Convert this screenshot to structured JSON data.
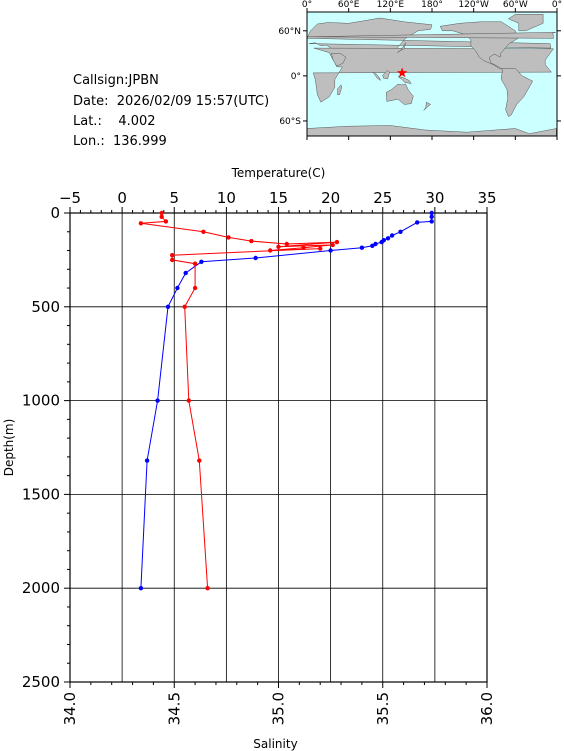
{
  "info": {
    "callsign": "Callsign:JPBN",
    "date": "Date:  2026/02/09 15:57(UTC)",
    "lat": "Lat.:    4.002",
    "lon": "Lon.:  136.999"
  },
  "map": {
    "lon_labels": [
      "0°",
      "60°E",
      "120°E",
      "180°",
      "120°W",
      "60°W",
      "0°"
    ],
    "lat_labels": [
      "60°N",
      "0°",
      "60°S"
    ],
    "station": {
      "lon": 136.999,
      "lat": 4.002
    },
    "colors": {
      "ocean": "#ccffff",
      "land": "#bebebe",
      "marker": "#ff0000"
    }
  },
  "chart_data": {
    "type": "line",
    "top_axis": {
      "label": "Temperature(C)",
      "range": [
        -5,
        35
      ],
      "ticks": [
        "-5",
        "0",
        "5",
        "10",
        "15",
        "20",
        "25",
        "30",
        "35"
      ]
    },
    "bottom_axis": {
      "label": "Salinity",
      "range": [
        34.0,
        36.0
      ],
      "ticks": [
        "34.0",
        "34.5",
        "35.0",
        "35.5",
        "36.0"
      ]
    },
    "left_axis": {
      "label": "Depth(m)",
      "range": [
        0,
        2500
      ],
      "reversed": true,
      "ticks": [
        "0",
        "500",
        "1000",
        "1500",
        "2000",
        "2500"
      ]
    },
    "grid": true,
    "series": [
      {
        "axis": "temperature",
        "color": "#0000ff",
        "points": [
          [
            29.7,
            0
          ],
          [
            29.7,
            20
          ],
          [
            29.7,
            45
          ],
          [
            28.3,
            50
          ],
          [
            26.7,
            100
          ],
          [
            25.9,
            120
          ],
          [
            25.5,
            135
          ],
          [
            25.1,
            145
          ],
          [
            24.9,
            155
          ],
          [
            24.3,
            165
          ],
          [
            24.0,
            175
          ],
          [
            23.0,
            185
          ],
          [
            20.0,
            200
          ],
          [
            12.8,
            240
          ],
          [
            7.6,
            260
          ],
          [
            6.1,
            320
          ],
          [
            5.3,
            400
          ],
          [
            4.4,
            500
          ],
          [
            3.4,
            1000
          ],
          [
            2.4,
            1320
          ],
          [
            1.8,
            2000
          ]
        ]
      },
      {
        "axis": "salinity",
        "color": "#ff0000",
        "points": [
          [
            34.44,
            0
          ],
          [
            34.44,
            20
          ],
          [
            34.46,
            45
          ],
          [
            34.34,
            55
          ],
          [
            34.64,
            100
          ],
          [
            34.76,
            130
          ],
          [
            34.87,
            150
          ],
          [
            35.04,
            165
          ],
          [
            35.28,
            155
          ],
          [
            35.0,
            180
          ],
          [
            35.26,
            170
          ],
          [
            35.12,
            185
          ],
          [
            34.96,
            200
          ],
          [
            35.2,
            190
          ],
          [
            34.49,
            225
          ],
          [
            34.49,
            250
          ],
          [
            34.6,
            270
          ],
          [
            34.6,
            400
          ],
          [
            34.55,
            500
          ],
          [
            34.57,
            1000
          ],
          [
            34.62,
            1320
          ],
          [
            34.66,
            2000
          ]
        ]
      }
    ]
  }
}
